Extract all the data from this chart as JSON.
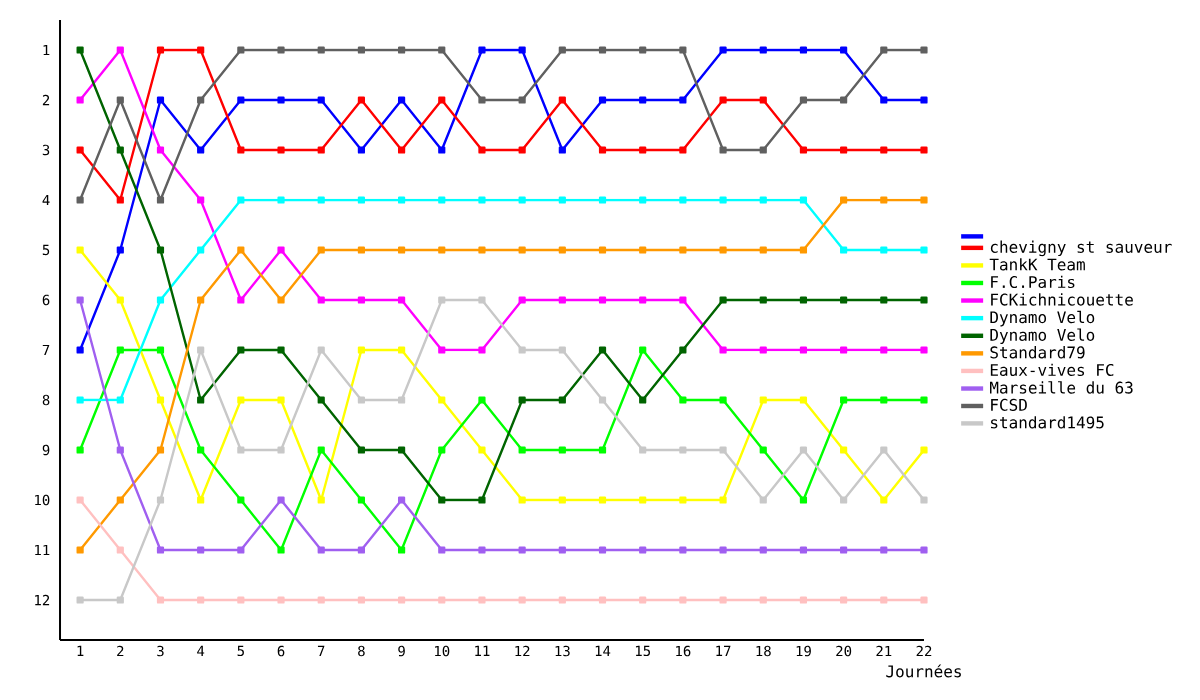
{
  "chart_data": {
    "type": "line",
    "xlabel": "Journées",
    "x": [
      1,
      2,
      3,
      4,
      5,
      6,
      7,
      8,
      9,
      10,
      11,
      12,
      13,
      14,
      15,
      16,
      17,
      18,
      19,
      20,
      21,
      22
    ],
    "xlim": [
      0.5,
      22
    ],
    "xticks": [
      1,
      2,
      3,
      4,
      5,
      6,
      7,
      8,
      9,
      10,
      11,
      12,
      13,
      14,
      15,
      16,
      17,
      18,
      19,
      20,
      21,
      22
    ],
    "ylim": [
      12.8,
      0.4
    ],
    "yticks": [
      1,
      2,
      3,
      4,
      5,
      6,
      7,
      8,
      9,
      10,
      11,
      12
    ],
    "marker": "square",
    "legend": "right",
    "series": [
      {
        "color": "#0000ff",
        "values": [
          7,
          5,
          2,
          3,
          2,
          2,
          2,
          3,
          2,
          3,
          1,
          1,
          3,
          2,
          2,
          2,
          1,
          1,
          1,
          1,
          2,
          2
        ]
      },
      {
        "name": "chevigny st sauveur",
        "color": "#ff0000",
        "values": [
          3,
          4,
          1,
          1,
          3,
          3,
          3,
          2,
          3,
          2,
          3,
          3,
          2,
          3,
          3,
          3,
          2,
          2,
          3,
          3,
          3,
          3
        ]
      },
      {
        "name": "TankK Team",
        "color": "#ffff00",
        "values": [
          5,
          6,
          8,
          10,
          8,
          8,
          10,
          7,
          7,
          8,
          9,
          10,
          10,
          10,
          10,
          10,
          10,
          8,
          8,
          9,
          10,
          9
        ]
      },
      {
        "name": "F.C.Paris",
        "color": "#00ff00",
        "values": [
          9,
          7,
          7,
          9,
          10,
          11,
          9,
          10,
          11,
          9,
          8,
          9,
          9,
          9,
          7,
          8,
          8,
          9,
          10,
          8,
          8,
          8
        ]
      },
      {
        "name": "FCKichnicouette",
        "color": "#ff00ff",
        "values": [
          2,
          1,
          3,
          4,
          6,
          5,
          6,
          6,
          6,
          7,
          7,
          6,
          6,
          6,
          6,
          6,
          7,
          7,
          7,
          7,
          7,
          7
        ]
      },
      {
        "name": "Dynamo Velo",
        "color": "#00ffff",
        "values": [
          8,
          8,
          6,
          5,
          4,
          4,
          4,
          4,
          4,
          4,
          4,
          4,
          4,
          4,
          4,
          4,
          4,
          4,
          4,
          5,
          5,
          5
        ]
      },
      {
        "name": "Dynamo Velo",
        "color": "#006400",
        "values": [
          1,
          3,
          5,
          8,
          7,
          7,
          8,
          9,
          9,
          10,
          10,
          8,
          8,
          7,
          8,
          7,
          6,
          6,
          6,
          6,
          6,
          6
        ]
      },
      {
        "name": "Standard79",
        "color": "#ff9900",
        "values": [
          11,
          10,
          9,
          6,
          5,
          6,
          5,
          5,
          5,
          5,
          5,
          5,
          5,
          5,
          5,
          5,
          5,
          5,
          5,
          4,
          4,
          4
        ]
      },
      {
        "name": "Eaux-vives FC",
        "color": "#ffc0c0",
        "values": [
          10,
          11,
          12,
          12,
          12,
          12,
          12,
          12,
          12,
          12,
          12,
          12,
          12,
          12,
          12,
          12,
          12,
          12,
          12,
          12,
          12,
          12
        ]
      },
      {
        "name": "Marseille du 63",
        "color": "#a05ff0",
        "values": [
          6,
          9,
          11,
          11,
          11,
          10,
          11,
          11,
          10,
          11,
          11,
          11,
          11,
          11,
          11,
          11,
          11,
          11,
          11,
          11,
          11,
          11
        ]
      },
      {
        "name": "FCSD",
        "color": "#606060",
        "values": [
          4,
          2,
          4,
          2,
          1,
          1,
          1,
          1,
          1,
          1,
          2,
          2,
          1,
          1,
          1,
          1,
          3,
          3,
          2,
          2,
          1,
          1
        ]
      },
      {
        "name": "standard1495",
        "color": "#c8c8c8",
        "values": [
          12,
          12,
          10,
          7,
          9,
          9,
          7,
          8,
          8,
          6,
          6,
          7,
          7,
          8,
          9,
          9,
          9,
          10,
          9,
          10,
          9,
          10
        ]
      }
    ]
  }
}
